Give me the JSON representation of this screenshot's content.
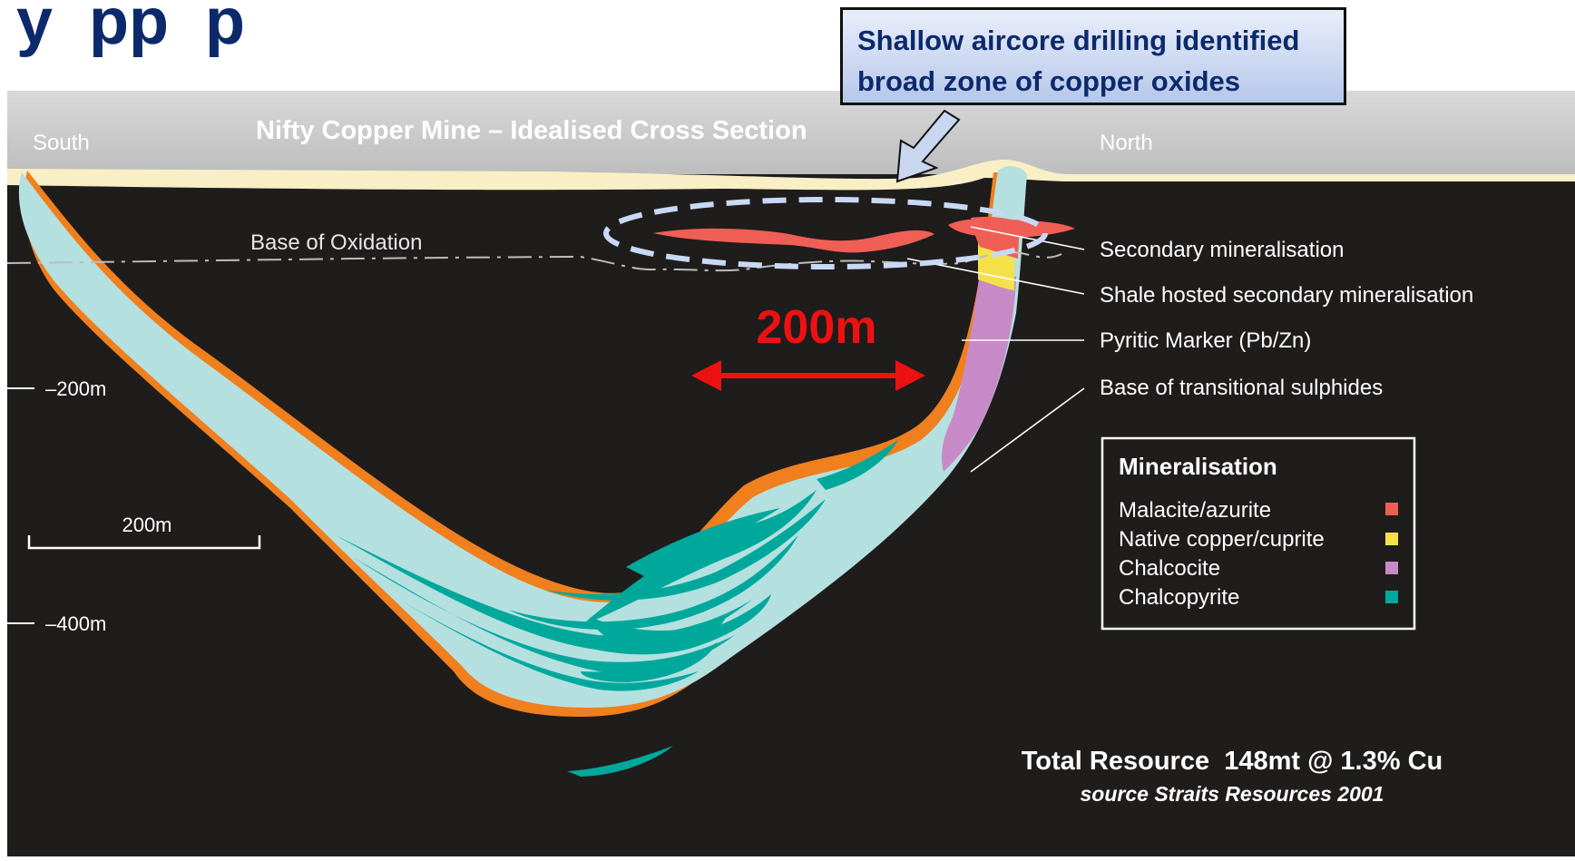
{
  "heading_fragment": "y  pp  p",
  "diagram": {
    "title": "Nifty Copper Mine – Idealised Cross Section",
    "direction_left": "South",
    "direction_right": "North",
    "base_of_oxidation": "Base of Oxidation",
    "depth_labels": [
      "–200m",
      "–400m"
    ],
    "scale_bar_label": "200m",
    "annotation_distance": "200m"
  },
  "callout": {
    "line1": "Shallow aircore drilling identified",
    "line2": "broad zone of copper oxides"
  },
  "leaders": [
    "Secondary mineralisation",
    "Shale hosted secondary mineralisation",
    "Pyritic Marker (Pb/Zn)",
    "Base of transitional sulphides"
  ],
  "legend": {
    "title": "Mineralisation",
    "items": [
      {
        "label": "Malacite/azurite",
        "color": "#ef5f55"
      },
      {
        "label": "Native copper/cuprite",
        "color": "#f4e14a"
      },
      {
        "label": "Chalcocite",
        "color": "#c88ac6"
      },
      {
        "label": "Chalcopyrite",
        "color": "#00a89c"
      }
    ]
  },
  "resource": {
    "line1": "Total Resource  148mt @ 1.3% Cu",
    "line2": "source Straits Resources 2001"
  },
  "colors": {
    "background": "#1f1c1c",
    "surface_band": "#c9c9c9",
    "regolith": "#f8efc6",
    "host_rock": "#b5e0e0",
    "rim": "#f07f1e",
    "chalcopyrite": "#00a89c",
    "annotation_red": "#ee1111",
    "heading_blue": "#0c2a6b"
  }
}
